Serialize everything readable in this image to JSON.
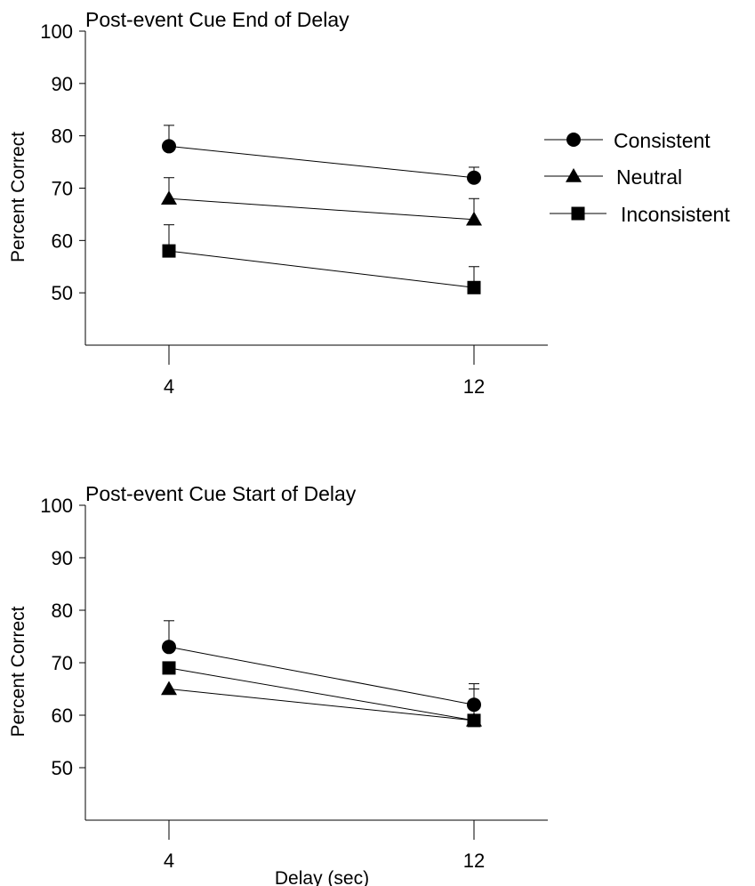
{
  "legend": {
    "entries": [
      {
        "label": "Consistent",
        "marker": "circle"
      },
      {
        "label": "Neutral",
        "marker": "triangle"
      },
      {
        "label": "Inconsistent",
        "marker": "square"
      }
    ]
  },
  "chart_data": [
    {
      "type": "line",
      "title": "Post-event Cue End of Delay",
      "xlabel": "",
      "ylabel": "Percent Correct",
      "x": [
        4,
        12
      ],
      "x_tick_labels": [
        "4",
        "12"
      ],
      "y_ticks": [
        50,
        60,
        70,
        80,
        90,
        100
      ],
      "ylim": [
        40,
        100
      ],
      "grid": false,
      "legend_position": "right",
      "series": [
        {
          "name": "Consistent",
          "marker": "circle",
          "values": [
            78,
            72
          ],
          "error_upper": [
            82,
            74
          ]
        },
        {
          "name": "Neutral",
          "marker": "triangle",
          "values": [
            68,
            64
          ],
          "error_upper": [
            72,
            68
          ]
        },
        {
          "name": "Inconsistent",
          "marker": "square",
          "values": [
            58,
            51
          ],
          "error_upper": [
            63,
            55
          ]
        }
      ]
    },
    {
      "type": "line",
      "title": "Post-event Cue Start of Delay",
      "xlabel": "Delay (sec)",
      "ylabel": "Percent Correct",
      "x": [
        4,
        12
      ],
      "x_tick_labels": [
        "4",
        "12"
      ],
      "y_ticks": [
        50,
        60,
        70,
        80,
        90,
        100
      ],
      "ylim": [
        40,
        100
      ],
      "grid": false,
      "legend_position": "none",
      "series": [
        {
          "name": "Consistent",
          "marker": "circle",
          "values": [
            73,
            62
          ],
          "error_upper": [
            78,
            66
          ]
        },
        {
          "name": "Neutral",
          "marker": "triangle",
          "values": [
            65,
            59
          ],
          "error_upper": [
            65,
            65
          ]
        },
        {
          "name": "Inconsistent",
          "marker": "square",
          "values": [
            69,
            59
          ],
          "error_upper": [
            69,
            59
          ]
        }
      ]
    }
  ]
}
